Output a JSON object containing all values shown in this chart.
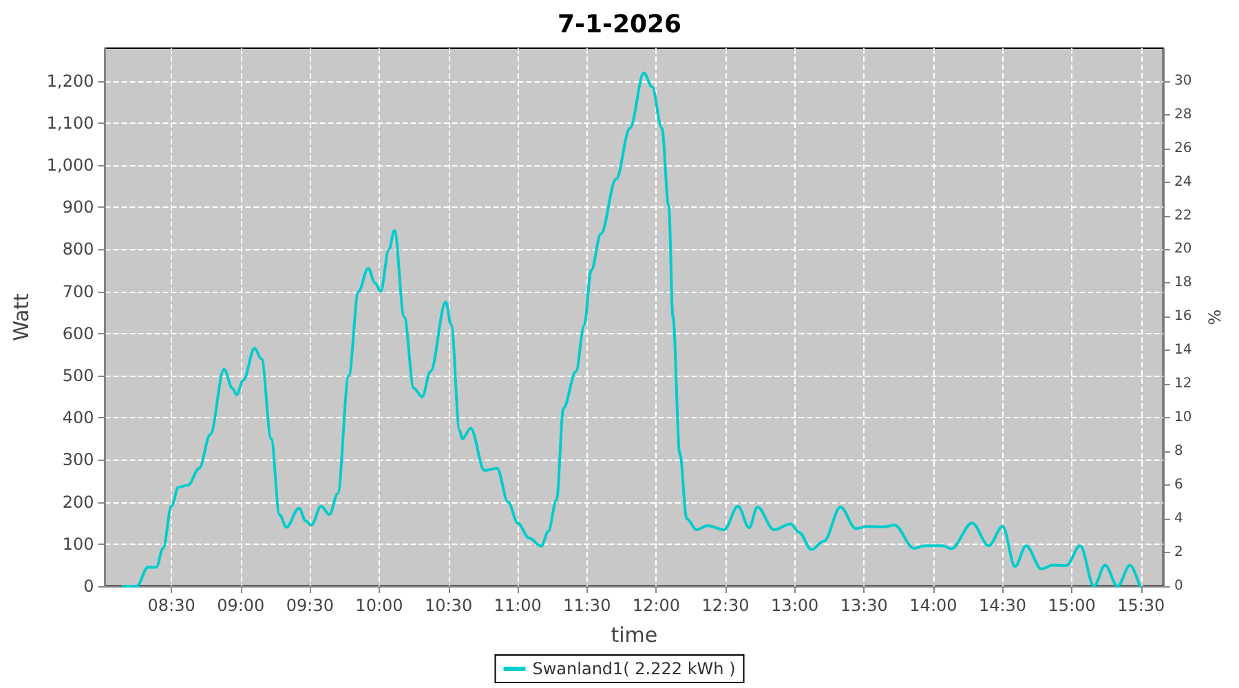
{
  "chart_data": {
    "type": "line",
    "title": "7-1-2026",
    "xlabel": "time",
    "ylabel": "Watt",
    "y2label": "%",
    "xlim": [
      8.02,
      15.66
    ],
    "xticks": [
      {
        "value": 8.5,
        "label": "08:30"
      },
      {
        "value": 9,
        "label": "09:00"
      },
      {
        "value": 9.5,
        "label": "09:30"
      },
      {
        "value": 10,
        "label": "10:00"
      },
      {
        "value": 10.5,
        "label": "10:30"
      },
      {
        "value": 11,
        "label": "11:00"
      },
      {
        "value": 11.5,
        "label": "11:30"
      },
      {
        "value": 12,
        "label": "12:00"
      },
      {
        "value": 12.5,
        "label": "12:30"
      },
      {
        "value": 13,
        "label": "13:00"
      },
      {
        "value": 13.5,
        "label": "13:30"
      },
      {
        "value": 14,
        "label": "14:00"
      },
      {
        "value": 14.5,
        "label": "14:30"
      },
      {
        "value": 15,
        "label": "15:00"
      },
      {
        "value": 15.5,
        "label": "15:30"
      }
    ],
    "ylim": [
      0,
      1278
    ],
    "yticks": [
      0,
      100,
      200,
      300,
      400,
      500,
      600,
      700,
      800,
      900,
      {
        "value": 1000,
        "label": "1,000"
      },
      {
        "value": 1100,
        "label": "1,100"
      },
      {
        "value": 1200,
        "label": "1,200"
      }
    ],
    "y2lim": [
      0,
      31.95
    ],
    "y2ticks": [
      0,
      2,
      4,
      6,
      8,
      10,
      12,
      14,
      16,
      18,
      20,
      22,
      24,
      26,
      28,
      30
    ],
    "grid": true,
    "legend": "bottom",
    "marker": "none",
    "line_style": "solid",
    "series": [
      {
        "name": "Swanland1( 2.222 kWh )",
        "color": "#00cccc",
        "x": [
          8.15,
          8.25,
          8.33,
          8.39,
          8.44,
          8.5,
          8.55,
          8.62,
          8.7,
          8.78,
          8.88,
          8.94,
          8.97,
          9.02,
          9.1,
          9.15,
          9.22,
          9.28,
          9.33,
          9.42,
          9.47,
          9.51,
          9.58,
          9.64,
          9.7,
          9.78,
          9.85,
          9.92,
          9.97,
          10.01,
          10.07,
          10.11,
          10.18,
          10.25,
          10.31,
          10.37,
          10.48,
          10.52,
          10.58,
          10.6,
          10.66,
          10.76,
          10.85,
          10.93,
          11.0,
          11.08,
          11.17,
          11.22,
          11.28,
          11.33,
          11.42,
          11.48,
          11.53,
          11.6,
          11.71,
          11.81,
          11.91,
          11.97,
          12.04,
          12.09,
          12.12,
          12.17,
          12.22,
          12.29,
          12.37,
          12.49,
          12.59,
          12.67,
          12.73,
          12.85,
          12.97,
          13.03,
          13.12,
          13.21,
          13.33,
          13.44,
          13.53,
          13.64,
          13.72,
          13.86,
          13.94,
          14.07,
          14.13,
          14.28,
          14.4,
          14.5,
          14.59,
          14.67,
          14.78,
          14.86,
          14.96,
          15.06,
          15.16,
          15.24,
          15.33,
          15.42,
          15.49
        ],
        "values": [
          0,
          0,
          45,
          45,
          90,
          190,
          235,
          240,
          280,
          360,
          515,
          470,
          455,
          490,
          565,
          540,
          350,
          170,
          140,
          185,
          155,
          145,
          190,
          170,
          220,
          500,
          700,
          755,
          720,
          700,
          800,
          845,
          640,
          470,
          450,
          510,
          675,
          620,
          370,
          350,
          375,
          275,
          280,
          200,
          150,
          115,
          95,
          130,
          205,
          423,
          510,
          620,
          750,
          837,
          967,
          1088,
          1219,
          1186,
          1088,
          902,
          640,
          314,
          160,
          134,
          144,
          134,
          190,
          139,
          188,
          134,
          148,
          128,
          87,
          107,
          188,
          137,
          142,
          141,
          145,
          90,
          96,
          96,
          89,
          150,
          96,
          142,
          47,
          96,
          41,
          50,
          49,
          96,
          0,
          50,
          0,
          50,
          0
        ]
      }
    ]
  }
}
